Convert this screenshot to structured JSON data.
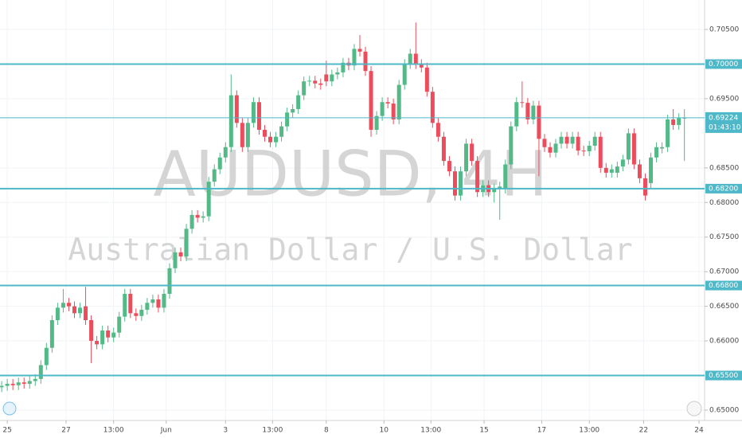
{
  "chart_data": {
    "type": "candlestick",
    "title": "AUDUSD, 4H",
    "subtitle": "Australian Dollar / U.S. Dollar",
    "up_color": "#53b987",
    "down_color": "#eb4d5c",
    "level_color": "#4fb8c8",
    "grid": true,
    "ylim": [
      0.6485,
      0.70926
    ],
    "xlim": [
      -0.3,
      125.6
    ],
    "yticks": [
      {
        "value": 0.65,
        "label": "0.65000"
      },
      {
        "value": 0.66,
        "label": "0.66000"
      },
      {
        "value": 0.665,
        "label": "0.66500"
      },
      {
        "value": 0.67,
        "label": "0.67000"
      },
      {
        "value": 0.675,
        "label": "0.67500"
      },
      {
        "value": 0.68,
        "label": "0.68000"
      },
      {
        "value": 0.685,
        "label": "0.68500"
      },
      {
        "value": 0.695,
        "label": "0.69500"
      },
      {
        "value": 0.705,
        "label": "0.70500"
      }
    ],
    "xticks": [
      {
        "value": 1,
        "label": "25"
      },
      {
        "value": 11.5,
        "label": "27"
      },
      {
        "value": 20,
        "label": "13:00"
      },
      {
        "value": 29.4,
        "label": "Jun"
      },
      {
        "value": 40,
        "label": "3"
      },
      {
        "value": 48.4,
        "label": "13:00"
      },
      {
        "value": 58,
        "label": "8"
      },
      {
        "value": 68.3,
        "label": "10"
      },
      {
        "value": 76.7,
        "label": "13:00"
      },
      {
        "value": 86.2,
        "label": "15"
      },
      {
        "value": 96.5,
        "label": "17"
      },
      {
        "value": 105,
        "label": "13:00"
      },
      {
        "value": 114.7,
        "label": "22"
      },
      {
        "value": 124.6,
        "label": "24"
      }
    ],
    "levels": [
      {
        "value": 0.7,
        "label": "0.70000"
      },
      {
        "value": 0.682,
        "label": "0.68200"
      },
      {
        "value": 0.668,
        "label": "0.66800"
      },
      {
        "value": 0.655,
        "label": "0.65500"
      }
    ],
    "last": {
      "value": 0.69224,
      "label": "0.69224"
    },
    "countdown": "01:43:10",
    "open": [
      0.6533,
      0.6535,
      0.6538,
      0.6536,
      0.654,
      0.6538,
      0.6542,
      0.6545,
      0.6565,
      0.659,
      0.663,
      0.6648,
      0.6655,
      0.665,
      0.664,
      0.665,
      0.663,
      0.66,
      0.6595,
      0.6615,
      0.6605,
      0.6612,
      0.6635,
      0.6668,
      0.664,
      0.6636,
      0.6645,
      0.6655,
      0.666,
      0.6648,
      0.6668,
      0.6705,
      0.6728,
      0.6722,
      0.6762,
      0.6782,
      0.6778,
      0.678,
      0.683,
      0.6848,
      0.6865,
      0.688,
      0.6955,
      0.6915,
      0.688,
      0.6915,
      0.6945,
      0.6905,
      0.6895,
      0.6887,
      0.6895,
      0.691,
      0.693,
      0.6935,
      0.6955,
      0.6975,
      0.6976,
      0.6972,
      0.6985,
      0.6975,
      0.6985,
      0.6988,
      0.7002,
      0.6998,
      0.7022,
      0.7018,
      0.699,
      0.6905,
      0.6925,
      0.6945,
      0.6943,
      0.692,
      0.697,
      0.7,
      0.7015,
      0.7,
      0.6995,
      0.696,
      0.6915,
      0.6895,
      0.686,
      0.6845,
      0.681,
      0.6845,
      0.6885,
      0.686,
      0.6815,
      0.6825,
      0.6815,
      0.682,
      0.682,
      0.6855,
      0.691,
      0.6945,
      0.6944,
      0.692,
      0.694,
      0.6892,
      0.688,
      0.6872,
      0.6885,
      0.6895,
      0.6885,
      0.6895,
      0.6875,
      0.6874,
      0.6882,
      0.6895,
      0.685,
      0.6843,
      0.6843,
      0.6852,
      0.6862,
      0.69,
      0.6855,
      0.6835,
      0.6828,
      0.6865,
      0.6878,
      0.688,
      0.692,
      0.6912,
      0.6922
    ],
    "high": [
      0.6542,
      0.6545,
      0.6545,
      0.6547,
      0.6547,
      0.6549,
      0.6552,
      0.6572,
      0.6597,
      0.6637,
      0.6655,
      0.6675,
      0.6662,
      0.6657,
      0.6655,
      0.6678,
      0.6637,
      0.6607,
      0.6622,
      0.6622,
      0.6619,
      0.6642,
      0.6675,
      0.6675,
      0.6647,
      0.6652,
      0.6662,
      0.6667,
      0.6667,
      0.6675,
      0.6712,
      0.6735,
      0.6735,
      0.6769,
      0.6789,
      0.6789,
      0.6787,
      0.6837,
      0.6855,
      0.6872,
      0.6887,
      0.6985,
      0.6962,
      0.6922,
      0.6922,
      0.6952,
      0.6952,
      0.6912,
      0.6902,
      0.6902,
      0.6917,
      0.6937,
      0.6942,
      0.6962,
      0.6982,
      0.6983,
      0.6983,
      0.6979,
      0.7005,
      0.6992,
      0.6995,
      0.7009,
      0.7009,
      0.7029,
      0.7042,
      0.7025,
      0.6997,
      0.6932,
      0.6952,
      0.6952,
      0.695,
      0.6977,
      0.7007,
      0.7022,
      0.706,
      0.7007,
      0.7002,
      0.6967,
      0.6922,
      0.6902,
      0.6867,
      0.6852,
      0.6852,
      0.6892,
      0.6892,
      0.6867,
      0.6832,
      0.6832,
      0.6827,
      0.683,
      0.6862,
      0.6917,
      0.6952,
      0.6975,
      0.6951,
      0.6947,
      0.6947,
      0.6899,
      0.6887,
      0.6892,
      0.6902,
      0.6902,
      0.6902,
      0.6902,
      0.6882,
      0.6889,
      0.6902,
      0.6902,
      0.6857,
      0.6855,
      0.6859,
      0.6869,
      0.6907,
      0.6907,
      0.6862,
      0.6842,
      0.6872,
      0.6887,
      0.6887,
      0.6927,
      0.6935,
      0.6929,
      0.6935
    ],
    "low": [
      0.6526,
      0.6528,
      0.6529,
      0.6529,
      0.6531,
      0.6531,
      0.6535,
      0.6538,
      0.6558,
      0.6583,
      0.6623,
      0.6641,
      0.6643,
      0.6633,
      0.6633,
      0.6623,
      0.6568,
      0.6588,
      0.6588,
      0.6598,
      0.6598,
      0.6605,
      0.6628,
      0.6633,
      0.6629,
      0.6629,
      0.6638,
      0.6648,
      0.6641,
      0.6641,
      0.6661,
      0.6698,
      0.6715,
      0.6715,
      0.6755,
      0.6771,
      0.6771,
      0.6773,
      0.6823,
      0.6841,
      0.6858,
      0.6873,
      0.6908,
      0.6873,
      0.6873,
      0.6908,
      0.6898,
      0.6888,
      0.688,
      0.688,
      0.6888,
      0.6903,
      0.6923,
      0.6928,
      0.6948,
      0.6968,
      0.6965,
      0.6963,
      0.6968,
      0.6968,
      0.6978,
      0.6981,
      0.6991,
      0.6991,
      0.7011,
      0.6983,
      0.6895,
      0.6898,
      0.6918,
      0.6936,
      0.6913,
      0.6913,
      0.6963,
      0.6993,
      0.6993,
      0.6988,
      0.6953,
      0.6908,
      0.6888,
      0.6853,
      0.6838,
      0.6803,
      0.6803,
      0.6838,
      0.6853,
      0.6808,
      0.6808,
      0.6808,
      0.68,
      0.6775,
      0.6813,
      0.6848,
      0.6903,
      0.6937,
      0.6913,
      0.6913,
      0.6838,
      0.6873,
      0.6865,
      0.6865,
      0.6878,
      0.6878,
      0.6878,
      0.6868,
      0.6867,
      0.6867,
      0.6875,
      0.6843,
      0.6836,
      0.6836,
      0.6836,
      0.6845,
      0.6855,
      0.6848,
      0.6828,
      0.6803,
      0.6821,
      0.6858,
      0.6871,
      0.6873,
      0.6905,
      0.6905,
      0.686
    ],
    "close": [
      0.6535,
      0.6538,
      0.6536,
      0.654,
      0.6538,
      0.6542,
      0.6545,
      0.6565,
      0.659,
      0.663,
      0.6648,
      0.6655,
      0.665,
      0.664,
      0.6648,
      0.663,
      0.66,
      0.6595,
      0.6615,
      0.6605,
      0.6612,
      0.6635,
      0.6668,
      0.664,
      0.6636,
      0.6645,
      0.6655,
      0.666,
      0.6648,
      0.6668,
      0.6705,
      0.6728,
      0.6722,
      0.6762,
      0.6782,
      0.6778,
      0.678,
      0.683,
      0.6848,
      0.6865,
      0.688,
      0.6955,
      0.6915,
      0.688,
      0.6915,
      0.6945,
      0.6905,
      0.6895,
      0.6887,
      0.6895,
      0.691,
      0.693,
      0.6935,
      0.6955,
      0.6975,
      0.6976,
      0.6972,
      0.697,
      0.6975,
      0.6985,
      0.6988,
      0.7002,
      0.6998,
      0.7022,
      0.7018,
      0.699,
      0.6905,
      0.6925,
      0.6945,
      0.6943,
      0.692,
      0.697,
      0.7,
      0.7015,
      0.7,
      0.6995,
      0.696,
      0.6915,
      0.6895,
      0.686,
      0.6845,
      0.681,
      0.6845,
      0.6885,
      0.686,
      0.6815,
      0.6825,
      0.6815,
      0.682,
      0.6823,
      0.6855,
      0.691,
      0.6945,
      0.6944,
      0.692,
      0.694,
      0.6892,
      0.688,
      0.6872,
      0.6885,
      0.6895,
      0.6885,
      0.6895,
      0.6875,
      0.6874,
      0.6882,
      0.6895,
      0.685,
      0.6843,
      0.6848,
      0.6852,
      0.6862,
      0.69,
      0.6855,
      0.6835,
      0.681,
      0.6865,
      0.688,
      0.688,
      0.692,
      0.6912,
      0.6922,
      0.69224
    ]
  }
}
